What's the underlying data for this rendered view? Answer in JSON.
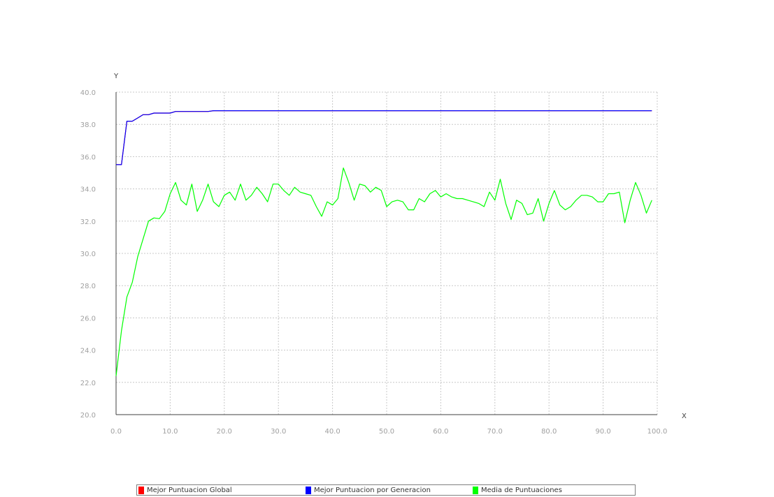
{
  "chart_data": {
    "type": "line",
    "title": "",
    "xlabel": "X",
    "ylabel": "Y",
    "xlim": [
      0,
      100
    ],
    "ylim": [
      20,
      40
    ],
    "xticks": [
      "0.0",
      "10.0",
      "20.0",
      "30.0",
      "40.0",
      "50.0",
      "60.0",
      "70.0",
      "80.0",
      "90.0",
      "100.0"
    ],
    "yticks": [
      "20.0",
      "22.0",
      "24.0",
      "26.0",
      "28.0",
      "30.0",
      "32.0",
      "34.0",
      "36.0",
      "38.0",
      "40.0"
    ],
    "grid": true,
    "legend_position": "bottom",
    "series": [
      {
        "name": "Mejor Puntuacion Global",
        "color": "#ff0000",
        "x": [
          0,
          1,
          2,
          3,
          4,
          5,
          6,
          7,
          8,
          9,
          10,
          11,
          12,
          13,
          14,
          15,
          16,
          17,
          18,
          19,
          20,
          21,
          22,
          23,
          24,
          25,
          26,
          27,
          28,
          29,
          30,
          31,
          32,
          33,
          34,
          35,
          36,
          37,
          38,
          39,
          40,
          41,
          42,
          43,
          44,
          45,
          46,
          47,
          48,
          49,
          50,
          51,
          52,
          53,
          54,
          55,
          56,
          57,
          58,
          59,
          60,
          61,
          62,
          63,
          64,
          65,
          66,
          67,
          68,
          69,
          70,
          71,
          72,
          73,
          74,
          75,
          76,
          77,
          78,
          79,
          80,
          81,
          82,
          83,
          84,
          85,
          86,
          87,
          88,
          89,
          90,
          91,
          92,
          93,
          94,
          95,
          96,
          97,
          98,
          99
        ],
        "values": [
          35.5,
          35.5,
          38.2,
          38.2,
          38.4,
          38.6,
          38.6,
          38.7,
          38.7,
          38.7,
          38.7,
          38.8,
          38.8,
          38.8,
          38.8,
          38.8,
          38.8,
          38.8,
          38.85,
          38.85,
          38.85,
          38.85,
          38.85,
          38.85,
          38.85,
          38.85,
          38.85,
          38.85,
          38.85,
          38.85,
          38.85,
          38.85,
          38.85,
          38.85,
          38.85,
          38.85,
          38.85,
          38.85,
          38.85,
          38.85,
          38.85,
          38.85,
          38.85,
          38.85,
          38.85,
          38.85,
          38.85,
          38.85,
          38.85,
          38.85,
          38.85,
          38.85,
          38.85,
          38.85,
          38.85,
          38.85,
          38.85,
          38.85,
          38.85,
          38.85,
          38.85,
          38.85,
          38.85,
          38.85,
          38.85,
          38.85,
          38.85,
          38.85,
          38.85,
          38.85,
          38.85,
          38.85,
          38.85,
          38.85,
          38.85,
          38.85,
          38.85,
          38.85,
          38.85,
          38.85,
          38.85,
          38.85,
          38.85,
          38.85,
          38.85,
          38.85,
          38.85,
          38.85,
          38.85,
          38.85,
          38.85,
          38.85,
          38.85,
          38.85,
          38.85,
          38.85,
          38.85,
          38.85,
          38.85,
          38.85
        ]
      },
      {
        "name": "Mejor Puntuacion por Generacion",
        "color": "#0000ff",
        "x": [
          0,
          1,
          2,
          3,
          4,
          5,
          6,
          7,
          8,
          9,
          10,
          11,
          12,
          13,
          14,
          15,
          16,
          17,
          18,
          19,
          20,
          21,
          22,
          23,
          24,
          25,
          26,
          27,
          28,
          29,
          30,
          31,
          32,
          33,
          34,
          35,
          36,
          37,
          38,
          39,
          40,
          41,
          42,
          43,
          44,
          45,
          46,
          47,
          48,
          49,
          50,
          51,
          52,
          53,
          54,
          55,
          56,
          57,
          58,
          59,
          60,
          61,
          62,
          63,
          64,
          65,
          66,
          67,
          68,
          69,
          70,
          71,
          72,
          73,
          74,
          75,
          76,
          77,
          78,
          79,
          80,
          81,
          82,
          83,
          84,
          85,
          86,
          87,
          88,
          89,
          90,
          91,
          92,
          93,
          94,
          95,
          96,
          97,
          98,
          99
        ],
        "values": [
          35.5,
          35.5,
          38.2,
          38.2,
          38.4,
          38.6,
          38.6,
          38.7,
          38.7,
          38.7,
          38.7,
          38.8,
          38.8,
          38.8,
          38.8,
          38.8,
          38.8,
          38.8,
          38.85,
          38.85,
          38.85,
          38.85,
          38.85,
          38.85,
          38.85,
          38.85,
          38.85,
          38.85,
          38.85,
          38.85,
          38.85,
          38.85,
          38.85,
          38.85,
          38.85,
          38.85,
          38.85,
          38.85,
          38.85,
          38.85,
          38.85,
          38.85,
          38.85,
          38.85,
          38.85,
          38.85,
          38.85,
          38.85,
          38.85,
          38.85,
          38.85,
          38.85,
          38.85,
          38.85,
          38.85,
          38.85,
          38.85,
          38.85,
          38.85,
          38.85,
          38.85,
          38.85,
          38.85,
          38.85,
          38.85,
          38.85,
          38.85,
          38.85,
          38.85,
          38.85,
          38.85,
          38.85,
          38.85,
          38.85,
          38.85,
          38.85,
          38.85,
          38.85,
          38.85,
          38.85,
          38.85,
          38.85,
          38.85,
          38.85,
          38.85,
          38.85,
          38.85,
          38.85,
          38.85,
          38.85,
          38.85,
          38.85,
          38.85,
          38.85,
          38.85,
          38.85,
          38.85,
          38.85,
          38.85,
          38.85
        ]
      },
      {
        "name": "Media de Puntuaciones",
        "color": "#00ff00",
        "x": [
          0,
          1,
          2,
          3,
          4,
          5,
          6,
          7,
          8,
          9,
          10,
          11,
          12,
          13,
          14,
          15,
          16,
          17,
          18,
          19,
          20,
          21,
          22,
          23,
          24,
          25,
          26,
          27,
          28,
          29,
          30,
          31,
          32,
          33,
          34,
          35,
          36,
          37,
          38,
          39,
          40,
          41,
          42,
          43,
          44,
          45,
          46,
          47,
          48,
          49,
          50,
          51,
          52,
          53,
          54,
          55,
          56,
          57,
          58,
          59,
          60,
          61,
          62,
          63,
          64,
          65,
          66,
          67,
          68,
          69,
          70,
          71,
          72,
          73,
          74,
          75,
          76,
          77,
          78,
          79,
          80,
          81,
          82,
          83,
          84,
          85,
          86,
          87,
          88,
          89,
          90,
          91,
          92,
          93,
          94,
          95,
          96,
          97,
          98,
          99
        ],
        "values": [
          22.4,
          25.2,
          27.3,
          28.2,
          29.8,
          30.9,
          32.0,
          32.2,
          32.15,
          32.6,
          33.7,
          34.4,
          33.3,
          33.0,
          34.3,
          32.6,
          33.3,
          34.3,
          33.2,
          32.9,
          33.6,
          33.8,
          33.3,
          34.3,
          33.3,
          33.6,
          34.1,
          33.7,
          33.2,
          34.3,
          34.3,
          33.9,
          33.6,
          34.1,
          33.8,
          33.7,
          33.6,
          32.9,
          32.3,
          33.2,
          33.0,
          33.4,
          35.3,
          34.4,
          33.3,
          34.3,
          34.2,
          33.8,
          34.1,
          33.9,
          32.9,
          33.2,
          33.3,
          33.2,
          32.7,
          32.7,
          33.4,
          33.2,
          33.7,
          33.9,
          33.5,
          33.7,
          33.5,
          33.4,
          33.4,
          33.3,
          33.2,
          33.1,
          32.9,
          33.8,
          33.3,
          34.6,
          33.1,
          32.1,
          33.3,
          33.1,
          32.4,
          32.5,
          33.4,
          32.0,
          33.1,
          33.9,
          33.0,
          32.7,
          32.9,
          33.3,
          33.6,
          33.6,
          33.5,
          33.2,
          33.2,
          33.7,
          33.7,
          33.8,
          31.9,
          33.3,
          34.4,
          33.6,
          32.5,
          33.3
        ]
      }
    ]
  },
  "legend": {
    "items": [
      {
        "label": "Mejor Puntuacion Global",
        "color": "#ff0000"
      },
      {
        "label": "Mejor Puntuacion por Generacion",
        "color": "#0000ff"
      },
      {
        "label": "Media de Puntuaciones",
        "color": "#00ff00"
      }
    ]
  }
}
